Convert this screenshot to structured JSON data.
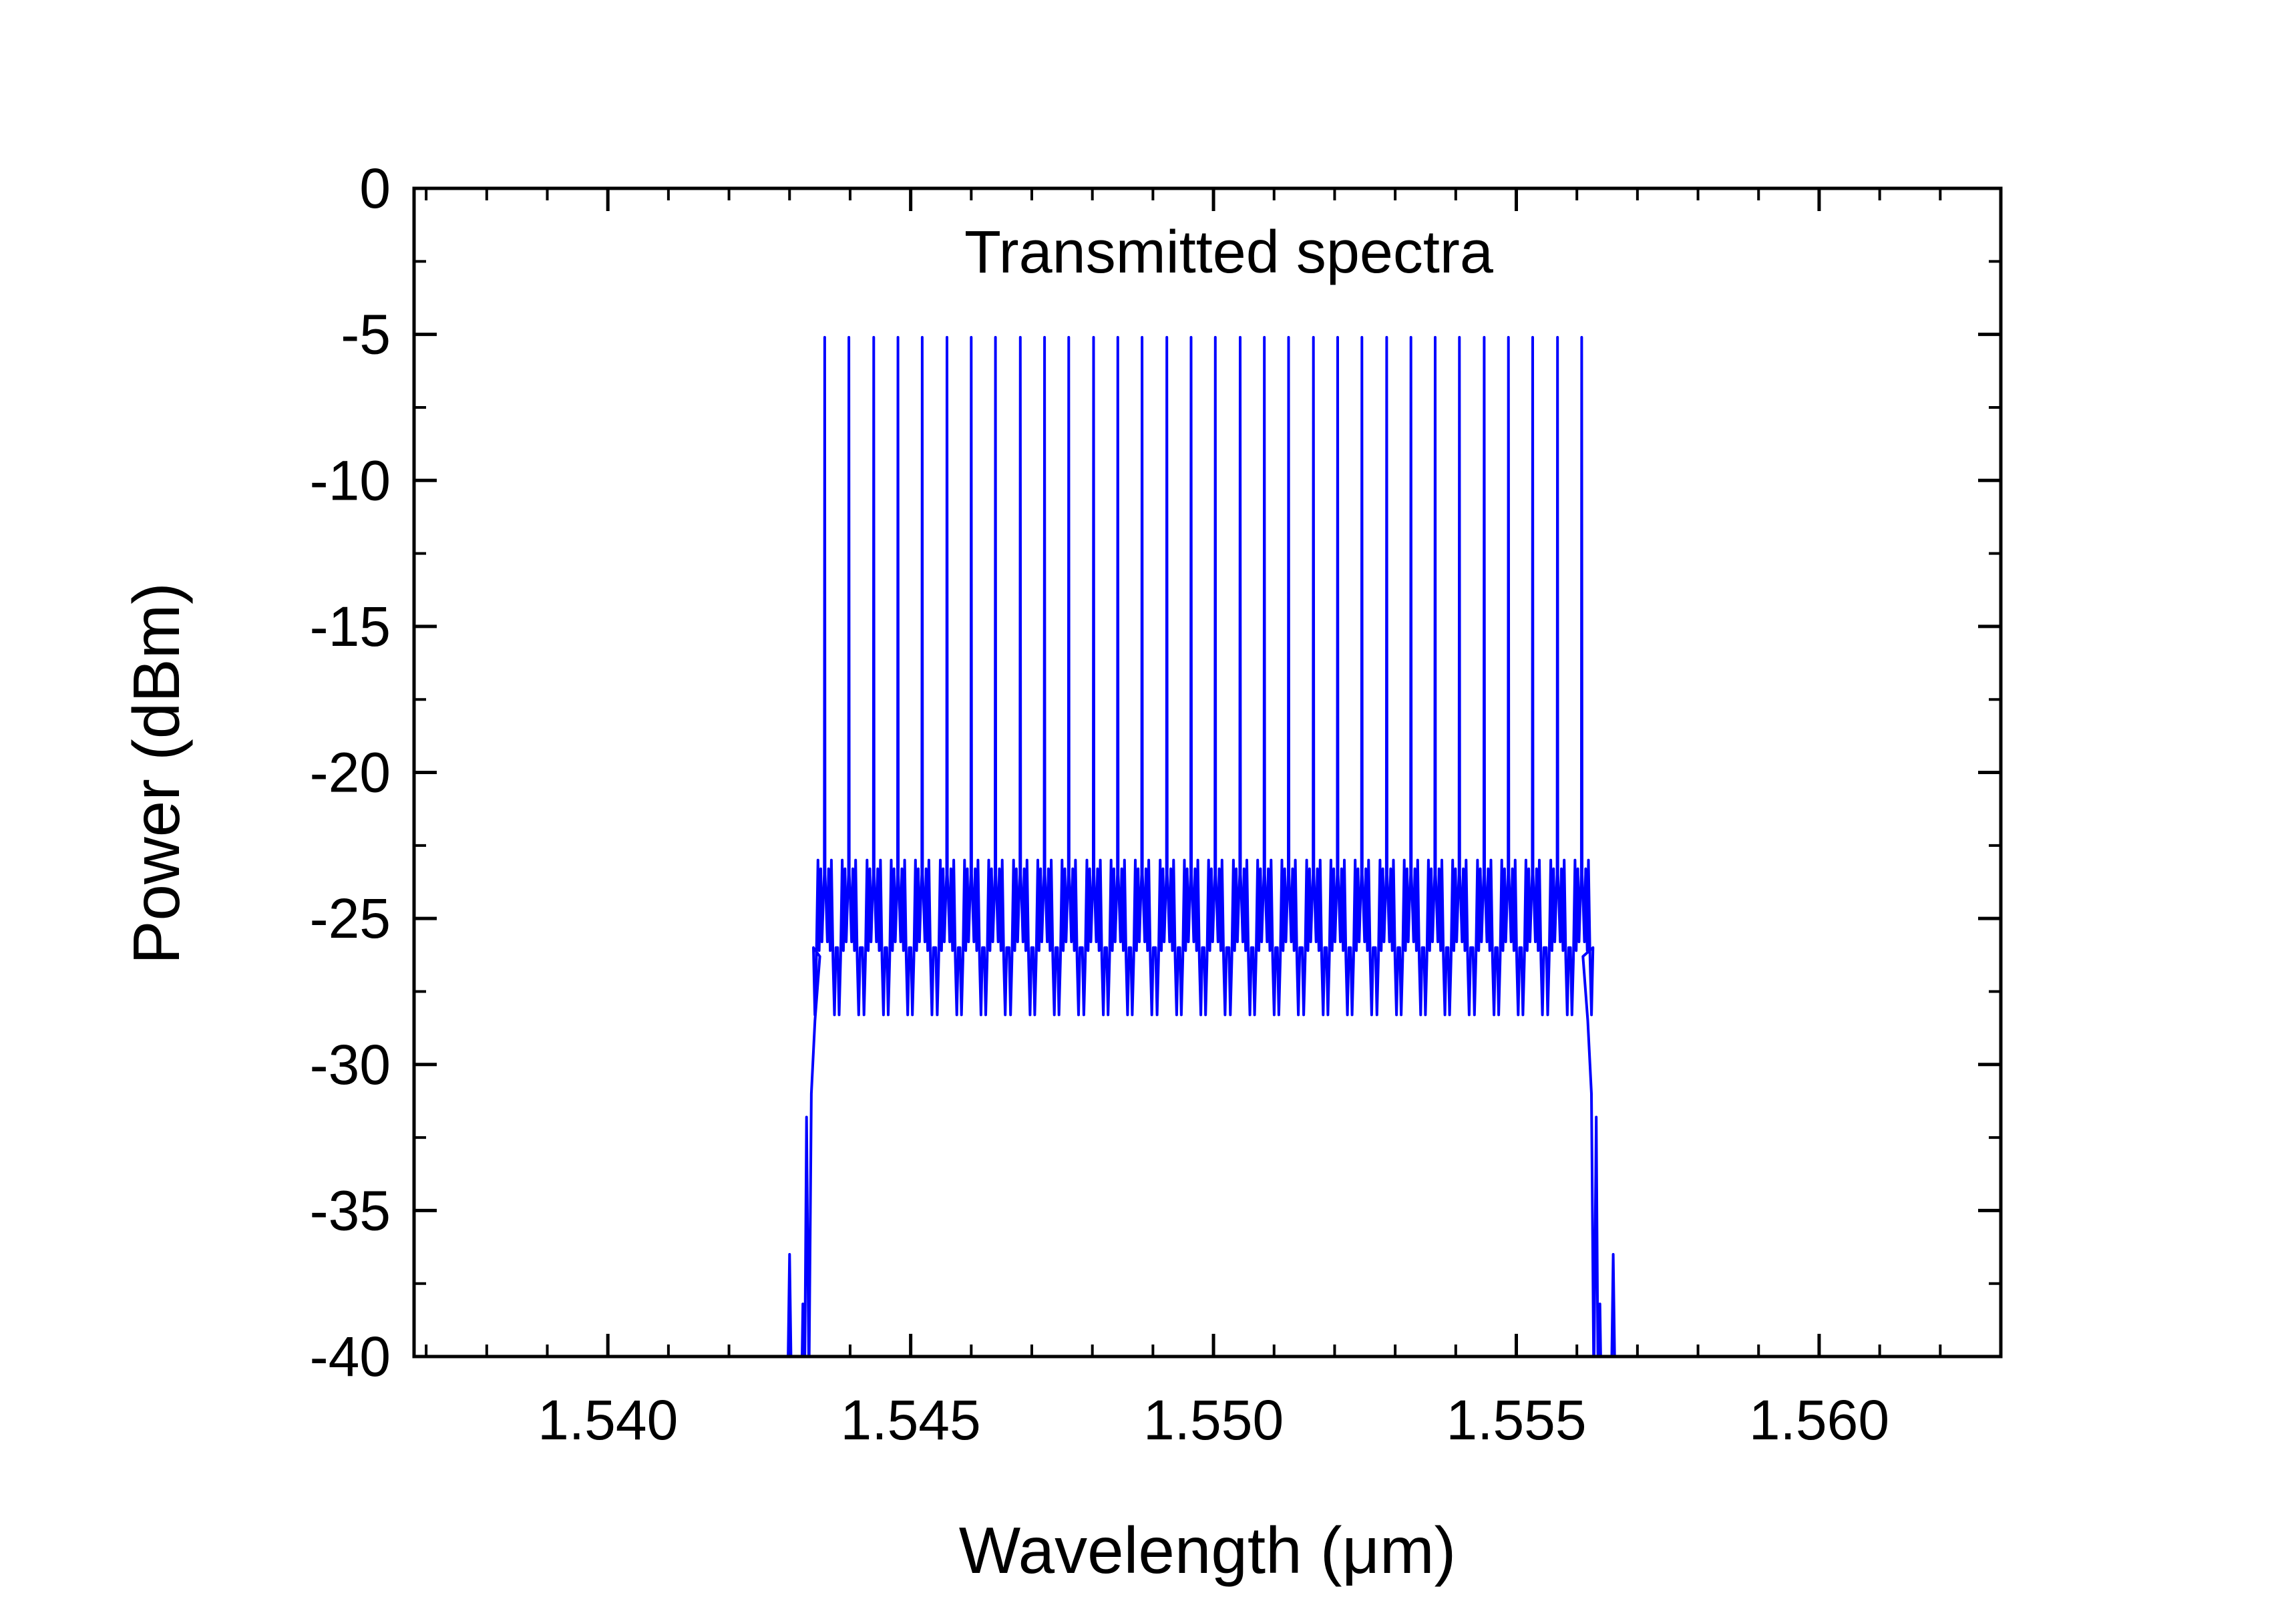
{
  "chart_data": {
    "type": "line",
    "title": "",
    "annotation": "Transmitted spectra",
    "xlabel": "Wavelength (μm)",
    "ylabel": "Power (dBm)",
    "xlim": [
      1.5368,
      1.563
    ],
    "ylim": [
      -40,
      0
    ],
    "x_ticks": [
      1.54,
      1.545,
      1.55,
      1.555,
      1.56
    ],
    "x_tick_labels": [
      "1.540",
      "1.545",
      "1.550",
      "1.555",
      "1.560"
    ],
    "y_ticks": [
      0,
      -5,
      -10,
      -15,
      -20,
      -25,
      -30,
      -35,
      -40
    ],
    "y_tick_labels": [
      "0",
      "-5",
      "-10",
      "-15",
      "-20",
      "-25",
      "-30",
      "-35",
      "-40"
    ],
    "x_minor_step": 0.001,
    "y_minor_step": 2.5,
    "grid": false,
    "legend": "none",
    "line_color": "#0000ff",
    "series": [
      {
        "name": "Transmitted spectra",
        "color": "#0000ff",
        "description": "Frequency comb: 32 spectral lines peaking near -5.1 dBm over a floor oscillating between about -28.5 and -22.8 dBm",
        "comb_start": 1.54358,
        "comb_end": 1.55608,
        "n_lines": 32,
        "peak_dbm": -5.1,
        "floor_min_dbm": -28.5,
        "floor_max_dbm": -22.8,
        "edge_left": 1.543,
        "edge_right": 1.5566,
        "peaks_x": [
          1.54358,
          1.54398,
          1.54439,
          1.54479,
          1.54519,
          1.5456,
          1.546,
          1.5464,
          1.54681,
          1.54721,
          1.54761,
          1.54802,
          1.54842,
          1.54882,
          1.54923,
          1.54963,
          1.55003,
          1.55044,
          1.55084,
          1.55124,
          1.55165,
          1.55205,
          1.55245,
          1.55286,
          1.55326,
          1.55366,
          1.55406,
          1.55447,
          1.55487,
          1.55527,
          1.55568,
          1.55608
        ],
        "peaks_y": [
          -5.1,
          -5.1,
          -5.1,
          -5.1,
          -5.1,
          -5.1,
          -5.1,
          -5.1,
          -5.1,
          -5.1,
          -5.1,
          -5.1,
          -5.1,
          -5.1,
          -5.1,
          -5.1,
          -5.1,
          -5.1,
          -5.1,
          -5.1,
          -5.1,
          -5.1,
          -5.1,
          -5.1,
          -5.1,
          -5.1,
          -5.1,
          -5.1,
          -5.1,
          -5.1,
          -5.1,
          -5.1
        ]
      }
    ]
  }
}
